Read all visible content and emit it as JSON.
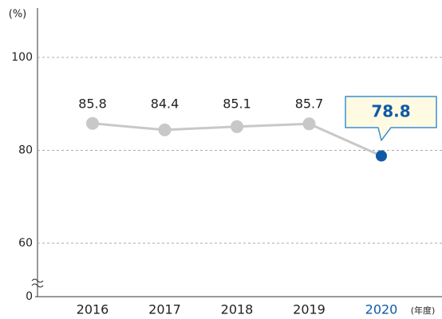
{
  "chart_data": {
    "type": "line",
    "y_unit": "(%)",
    "x_unit": "(年度)",
    "categories": [
      "2016",
      "2017",
      "2018",
      "2019",
      "2020"
    ],
    "series": [
      {
        "name": null,
        "color": "#c8c8c8",
        "values": [
          85.8,
          84.4,
          85.1,
          85.7,
          78.8
        ]
      }
    ],
    "highlight": {
      "index": 4,
      "color": "#0e5aa7"
    },
    "ylim": [
      0,
      100
    ],
    "ybreak": [
      0,
      60
    ],
    "yticks": [
      0,
      60,
      80,
      100
    ],
    "grid": true
  }
}
